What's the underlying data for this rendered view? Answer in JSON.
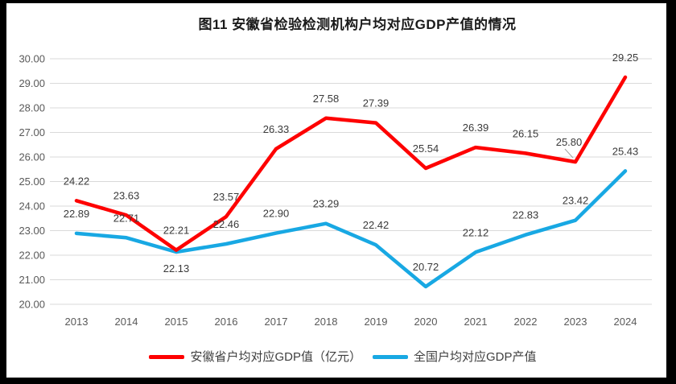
{
  "title": "图11 安徽省检验检测机构户均对应GDP产值的情况",
  "colors": {
    "anhui": "#FE0000",
    "national": "#18A8E3",
    "gridline": "#D9D9D9",
    "axis_label": "#595959",
    "data_label": "#3a3a3a",
    "leader_line": "#9e9e9e",
    "frame_border": "#000000",
    "background": "#ffffff"
  },
  "chart_data": {
    "type": "line",
    "title": "图11 安徽省检验检测机构户均对应GDP产值的情况",
    "categories": [
      "2013",
      "2014",
      "2015",
      "2016",
      "2017",
      "2018",
      "2019",
      "2020",
      "2021",
      "2022",
      "2023",
      "2024"
    ],
    "series": [
      {
        "name": "安徽省户均对应GDP值（亿元）",
        "color_key": "anhui",
        "values": [
          24.22,
          23.63,
          22.21,
          23.57,
          26.33,
          27.58,
          27.39,
          25.54,
          26.39,
          26.15,
          25.8,
          29.25
        ]
      },
      {
        "name": "全国户均对应GDP产值",
        "color_key": "national",
        "values": [
          22.89,
          22.71,
          22.13,
          22.46,
          22.9,
          23.29,
          22.42,
          20.72,
          22.12,
          22.83,
          23.42,
          25.43
        ]
      }
    ],
    "xlabel": "",
    "ylabel": "",
    "ylim": [
      20,
      30
    ],
    "ytick_step": 1,
    "ytick_decimals": 2,
    "data_label_decimals": 2,
    "grid": "horizontal",
    "legend_position": "bottom"
  }
}
